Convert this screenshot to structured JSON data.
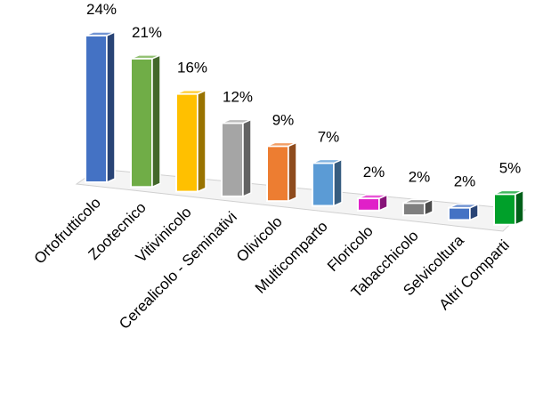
{
  "chart_data": {
    "type": "bar",
    "title": "",
    "xlabel": "",
    "ylabel": "",
    "ylim": [
      0,
      25
    ],
    "grid": false,
    "legend": "none",
    "categories": [
      "Ortofrutticolo",
      "Zootecnico",
      "Vitivinicolo",
      "Cerealicolo - Seminativi",
      "Olivicolo",
      "Multicomparto",
      "Floricolo",
      "Tabacchicolo",
      "Selvicoltura",
      "Altri Comparti"
    ],
    "values": [
      24,
      21,
      16,
      12,
      9,
      7,
      2,
      2,
      2,
      5
    ],
    "value_labels": [
      "24%",
      "21%",
      "16%",
      "12%",
      "9%",
      "7%",
      "2%",
      "2%",
      "2%",
      "5%"
    ],
    "colors": [
      "#4472C4",
      "#70AD47",
      "#FFC000",
      "#A5A5A5",
      "#ED7D31",
      "#5B9BD5",
      "#E020C8",
      "#7F7F7F",
      "#4472C4",
      "#00A02A"
    ]
  }
}
